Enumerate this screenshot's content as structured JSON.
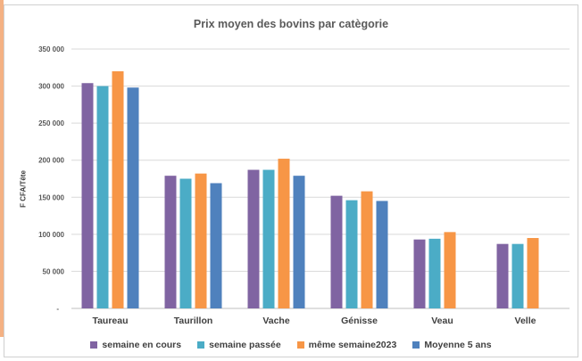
{
  "chart_data": {
    "type": "bar",
    "title": "Prix moyen des bovins par catègorie",
    "xlabel": "",
    "ylabel": "F CFA/Tête",
    "ylim": [
      0,
      350000
    ],
    "yticks": [
      0,
      50000,
      100000,
      150000,
      200000,
      250000,
      300000,
      350000
    ],
    "ytick_labels": [
      "-",
      "50 000",
      "100 000",
      "150 000",
      "200 000",
      "250 000",
      "300 000",
      "350 000"
    ],
    "grid": true,
    "legend_position": "bottom",
    "categories": [
      "Taureau",
      "Taurillon",
      "Vache",
      "Génisse",
      "Veau",
      "Velle"
    ],
    "series": [
      {
        "name": "semaine en cours",
        "color": "#8064a2",
        "values": [
          304000,
          179000,
          187000,
          152000,
          93000,
          87000
        ]
      },
      {
        "name": "semaine passée",
        "color": "#4bacc6",
        "values": [
          300000,
          175000,
          187000,
          146000,
          94000,
          87000
        ]
      },
      {
        "name": "même semaine2023",
        "color": "#f79646",
        "values": [
          320000,
          182000,
          202000,
          158000,
          103000,
          95000
        ]
      },
      {
        "name": "Moyenne 5 ans",
        "color": "#4f81bd",
        "values": [
          298000,
          169000,
          179000,
          145000,
          null,
          null
        ]
      }
    ]
  }
}
